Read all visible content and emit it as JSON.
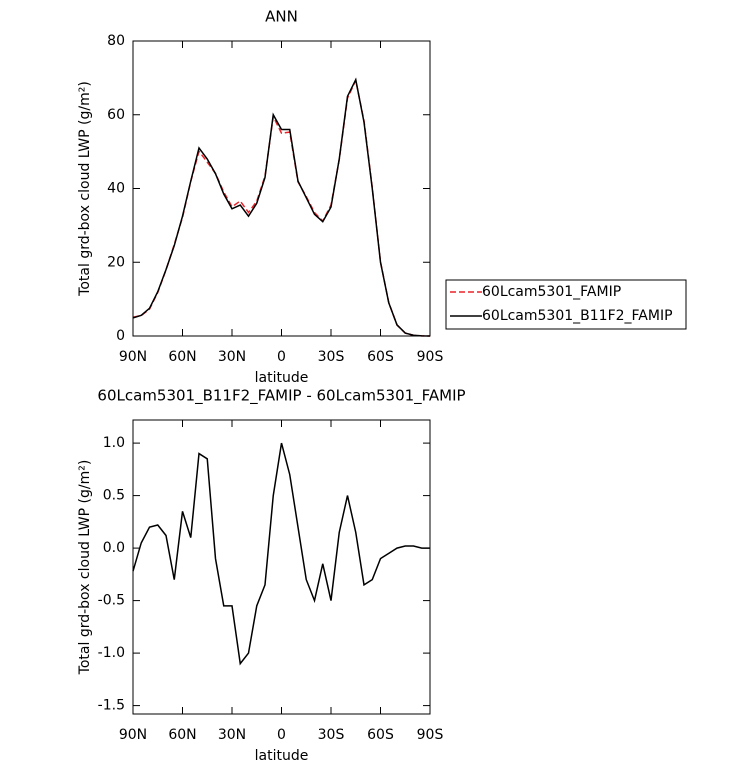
{
  "chart_data": [
    {
      "type": "line",
      "title": "ANN",
      "x_label": "latitude",
      "y_label": "Total grd-box cloud LWP (g/m²)",
      "x": [
        90,
        85,
        80,
        75,
        70,
        65,
        60,
        55,
        50,
        45,
        40,
        35,
        30,
        25,
        20,
        15,
        10,
        5,
        0,
        -5,
        -10,
        -15,
        -20,
        -25,
        -30,
        -35,
        -40,
        -45,
        -50,
        -55,
        -60,
        -65,
        -70,
        -75,
        -80,
        -85,
        -90
      ],
      "xlim": [
        90,
        -90
      ],
      "xticks": [
        {
          "value": 90,
          "label": "90N"
        },
        {
          "value": 60,
          "label": "60N"
        },
        {
          "value": 30,
          "label": "30N"
        },
        0,
        {
          "value": -30,
          "label": "30S"
        },
        {
          "value": -60,
          "label": "60S"
        },
        {
          "value": -90,
          "label": "90S"
        }
      ],
      "ylim": [
        0,
        80
      ],
      "yticks": [
        0,
        20,
        40,
        60,
        80
      ],
      "legend": "right",
      "series": [
        {
          "name": "60Lcam5301_FAMIP",
          "color": "#e8242c",
          "dashed": true,
          "values": [
            5.1,
            5.55,
            7.3,
            11.8,
            17.9,
            24.8,
            32.15,
            41.9,
            50.1,
            47.15,
            44.1,
            39.05,
            35.05,
            36.6,
            33.5,
            36.55,
            43.35,
            59.5,
            55,
            55.3,
            41.8,
            37.8,
            33.5,
            31.15,
            35.5,
            47.85,
            64.5,
            69.35,
            58.35,
            40.3,
            20.1,
            9.05,
            3,
            0.78,
            0.18,
            0.05,
            0
          ]
        },
        {
          "name": "60Lcam5301_B11F2_FAMIP",
          "color": "#000000",
          "dashed": false,
          "values": [
            4.9,
            5.6,
            7.5,
            12,
            18,
            24.5,
            32.5,
            42,
            51,
            48,
            44,
            38.5,
            34.5,
            35.5,
            32.5,
            36,
            43,
            60,
            56,
            56,
            42,
            37.5,
            33,
            31,
            35,
            48,
            65,
            69.5,
            58,
            40,
            20,
            9,
            3,
            0.8,
            0.2,
            0.05,
            0
          ]
        }
      ]
    },
    {
      "type": "line",
      "title": "60Lcam5301_B11F2_FAMIP - 60Lcam5301_FAMIP",
      "x_label": "latitude",
      "y_label": "Total grd-box cloud LWP (g/m²)",
      "x": [
        90,
        85,
        80,
        75,
        70,
        65,
        60,
        55,
        50,
        45,
        40,
        35,
        30,
        25,
        20,
        15,
        10,
        5,
        0,
        -5,
        -10,
        -15,
        -20,
        -25,
        -30,
        -35,
        -40,
        -45,
        -50,
        -55,
        -60,
        -65,
        -70,
        -75,
        -80,
        -85,
        -90
      ],
      "xlim": [
        90,
        -90
      ],
      "xticks": [
        {
          "value": 90,
          "label": "90N"
        },
        {
          "value": 60,
          "label": "60N"
        },
        {
          "value": 30,
          "label": "30N"
        },
        0,
        {
          "value": -30,
          "label": "30S"
        },
        {
          "value": -60,
          "label": "60S"
        },
        {
          "value": -90,
          "label": "90S"
        }
      ],
      "ylim": [
        -1.58,
        1.22
      ],
      "yticks": [
        -1.5,
        {
          "value": -1,
          "label": "-1.0"
        },
        -0.5,
        {
          "value": 0,
          "label": "0.0"
        },
        0.5,
        {
          "value": 1,
          "label": "1.0"
        }
      ],
      "series": [
        {
          "color": "#000000",
          "dashed": false,
          "values": [
            -0.22,
            0.05,
            0.2,
            0.22,
            0.12,
            -0.3,
            0.35,
            0.1,
            0.9,
            0.85,
            -0.1,
            -0.55,
            -0.55,
            -1.1,
            -1.0,
            -0.55,
            -0.35,
            0.5,
            1.0,
            0.7,
            0.2,
            -0.3,
            -0.5,
            -0.15,
            -0.5,
            0.15,
            0.5,
            0.15,
            -0.35,
            -0.3,
            -0.1,
            -0.05,
            0,
            0.02,
            0.02,
            0,
            0
          ]
        }
      ]
    }
  ]
}
